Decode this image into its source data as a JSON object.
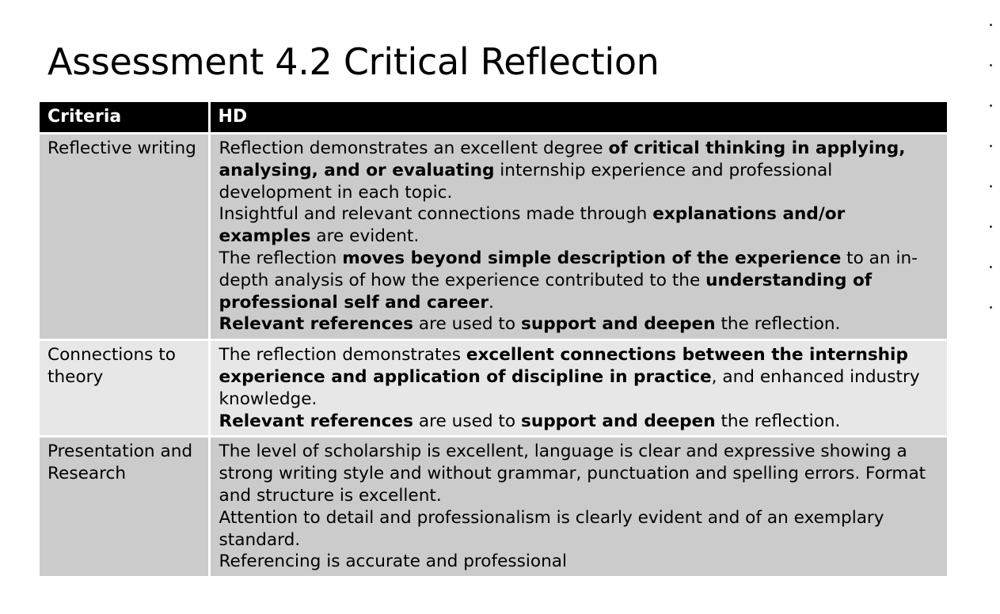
{
  "title": "Assessment 4.2 Critical Reflection",
  "table": {
    "headers": [
      "Criteria",
      "HD"
    ],
    "rows": [
      {
        "criteria": "Reflective writing",
        "lines": [
          [
            {
              "t": "Reflection demonstrates an excellent degree ",
              "b": false
            },
            {
              "t": "of critical thinking in applying, analysing, and or evaluating",
              "b": true
            },
            {
              "t": " internship experience and professional development in each topic.",
              "b": false
            }
          ],
          [
            {
              "t": "Insightful and relevant connections made through ",
              "b": false
            },
            {
              "t": "explanations and/or examples",
              "b": true
            },
            {
              "t": " are evident.",
              "b": false
            }
          ],
          [
            {
              "t": "The reflection ",
              "b": false
            },
            {
              "t": "moves beyond simple description of the experience",
              "b": true
            },
            {
              "t": " to an in-depth analysis of how the experience contributed to the ",
              "b": false
            },
            {
              "t": "understanding of professional self and career",
              "b": true
            },
            {
              "t": ".",
              "b": false
            }
          ],
          [
            {
              "t": "Relevant references",
              "b": true
            },
            {
              "t": " are used to ",
              "b": false
            },
            {
              "t": "support and deepen",
              "b": true
            },
            {
              "t": " the reflection.",
              "b": false
            }
          ]
        ]
      },
      {
        "criteria": "Connections to theory",
        "lines": [
          [
            {
              "t": "The reflection demonstrates ",
              "b": false
            },
            {
              "t": "excellent connections between the internship experience and application of discipline in practice",
              "b": true
            },
            {
              "t": ", and enhanced industry knowledge.",
              "b": false
            }
          ],
          [
            {
              "t": "Relevant references",
              "b": true
            },
            {
              "t": " are used to ",
              "b": false
            },
            {
              "t": "support and deepen",
              "b": true
            },
            {
              "t": " the reflection.",
              "b": false
            }
          ]
        ]
      },
      {
        "criteria": "Presentation and Research",
        "lines": [
          [
            {
              "t": "The level of scholarship is excellent, language is clear and expressive showing a strong writing style and without grammar, punctuation and spelling errors. Format and structure is excellent.",
              "b": false
            }
          ],
          [
            {
              "t": "Attention to detail and professionalism is clearly evident and of an exemplary standard.",
              "b": false
            }
          ],
          [
            {
              "t": "Referencing is accurate and professional",
              "b": false
            }
          ]
        ]
      }
    ]
  }
}
